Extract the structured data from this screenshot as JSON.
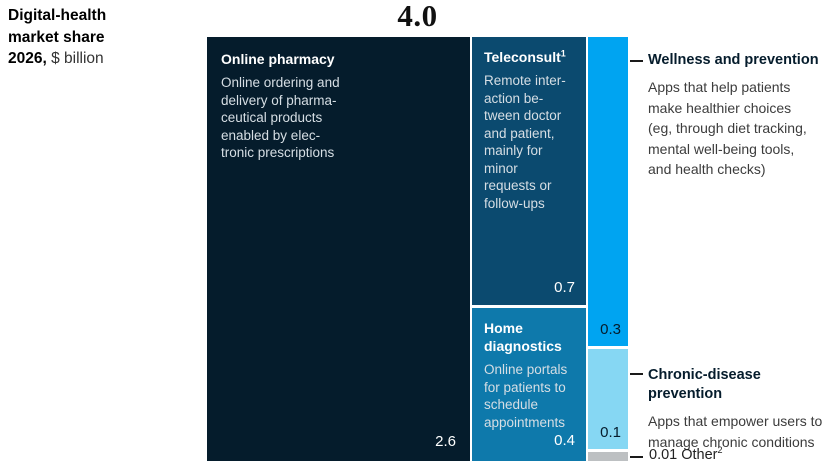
{
  "title": {
    "line1": "Digital-health",
    "line2": "market share",
    "line3_bold": "2026,",
    "line3_unit": " $ billion"
  },
  "total_display": "4.0",
  "chart_data": {
    "type": "marimekko",
    "title": "Digital-health market share 2026, $ billion",
    "unit": "$ billion",
    "total": 4.0,
    "segments": [
      {
        "name": "Online pharmacy",
        "value": 2.6,
        "color": "#051c2c",
        "column": 1,
        "description": "Online ordering and delivery of pharmaceutical products enabled by electronic prescriptions",
        "desc_display": "Online ordering and\ndelivery of pharma-\nceutical products\nenabled by elec-\ntronic prescriptions"
      },
      {
        "name": "Teleconsult",
        "footnote_marker": "1",
        "value": 0.7,
        "color": "#0b4a6f",
        "column": 2,
        "description": "Remote interaction between doctor and patient, mainly for minor requests or follow-ups",
        "desc_display": "Remote inter-\naction be-\ntween doctor\nand patient,\nmainly for\nminor\nrequests or\nfollow-ups"
      },
      {
        "name": "Home diagnostics",
        "value": 0.4,
        "color": "#0e79ab",
        "column": 2,
        "description": "Online portals for patients to schedule appointments",
        "desc_display": "Online portals\nfor patients to\nschedule\nappointments"
      },
      {
        "name": "Wellness and prevention",
        "value": 0.3,
        "color": "#00a4f1",
        "column": 3,
        "description": "Apps that help patients make healthier choices (eg, through diet tracking, mental well-being tools, and health checks)",
        "desc_display": "Apps that help patients\nmake healthier choices\n(eg, through diet tracking,\nmental well-being tools,\nand health checks)"
      },
      {
        "name": "Chronic-disease prevention",
        "value": 0.1,
        "color": "#86d7f3",
        "column": 3,
        "description": "Apps that empower users to manage chronic conditions",
        "desc_display": "Apps that empower users to\nmanage chronic conditions"
      },
      {
        "name": "Other",
        "footnote_marker": "2",
        "value": 0.01,
        "color": "#bdc0c2",
        "column": 3,
        "label_display": "0.01 Other"
      }
    ]
  }
}
